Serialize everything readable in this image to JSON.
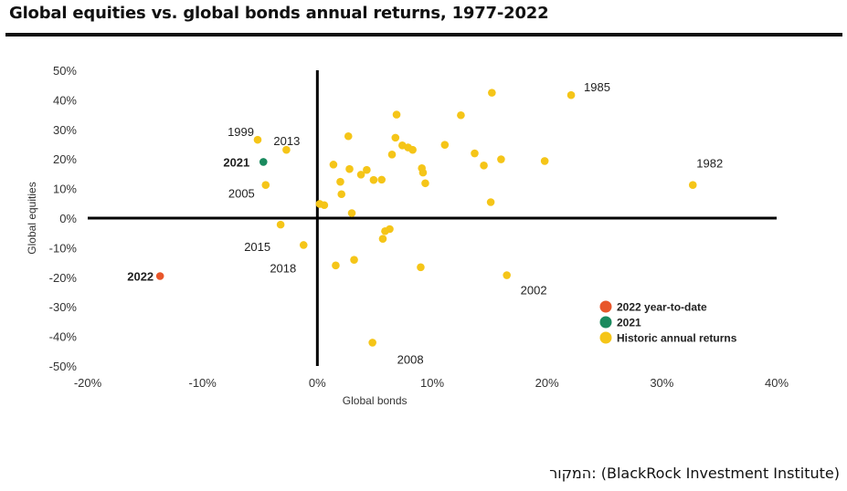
{
  "chart_data": {
    "type": "scatter",
    "title": "Global equities vs. global bonds annual returns, 1977-2022",
    "xlabel": "Global bonds",
    "ylabel": "Global equities",
    "xlim": [
      -20,
      40
    ],
    "ylim": [
      -50,
      50
    ],
    "x_ticks": [
      "-20%",
      "-10%",
      "0%",
      "10%",
      "20%",
      "30%",
      "40%"
    ],
    "y_ticks": [
      "50%",
      "40%",
      "30%",
      "20%",
      "10%",
      "0%",
      "-10%",
      "-20%",
      "-30%",
      "-40%",
      "-50%"
    ],
    "x_tick_values": [
      -20,
      -10,
      0,
      10,
      20,
      30,
      40
    ],
    "y_tick_values": [
      50,
      40,
      30,
      20,
      10,
      0,
      -10,
      -20,
      -30,
      -40,
      -50
    ],
    "grid": false,
    "legend_position": "bottom-right",
    "series": [
      {
        "name": "2022 year-to-date",
        "color": "#e8562a",
        "points": [
          {
            "x": -13.7,
            "y": -19.6,
            "label": "2022",
            "bold": true
          }
        ]
      },
      {
        "name": "2021",
        "color": "#1a8a5e",
        "points": [
          {
            "x": -4.7,
            "y": 19.0,
            "label": "2021",
            "bold": true
          }
        ]
      },
      {
        "name": "Historic annual returns",
        "color": "#f5c518",
        "points": [
          {
            "x": 22.1,
            "y": 41.6,
            "label": "1985"
          },
          {
            "x": 32.7,
            "y": 11.2,
            "label": "1982"
          },
          {
            "x": -5.2,
            "y": 26.5,
            "label": "1999"
          },
          {
            "x": -2.7,
            "y": 23.1,
            "label": "2013"
          },
          {
            "x": -4.5,
            "y": 11.2,
            "label": "2005"
          },
          {
            "x": -3.2,
            "y": -2.2,
            "label": "2015"
          },
          {
            "x": -1.2,
            "y": -9.1,
            "label": "2018"
          },
          {
            "x": 16.5,
            "y": -19.3,
            "label": "2002"
          },
          {
            "x": 4.8,
            "y": -42.1,
            "label": "2008"
          },
          {
            "x": 15.2,
            "y": 42.4
          },
          {
            "x": 6.9,
            "y": 35.0
          },
          {
            "x": 12.5,
            "y": 34.8
          },
          {
            "x": 2.7,
            "y": 27.7
          },
          {
            "x": 6.8,
            "y": 27.2
          },
          {
            "x": 7.4,
            "y": 24.6
          },
          {
            "x": 7.9,
            "y": 23.9
          },
          {
            "x": 8.3,
            "y": 23.1
          },
          {
            "x": 11.1,
            "y": 24.8
          },
          {
            "x": 13.7,
            "y": 21.9
          },
          {
            "x": 6.5,
            "y": 21.5
          },
          {
            "x": 16.0,
            "y": 19.9
          },
          {
            "x": 19.8,
            "y": 19.3
          },
          {
            "x": 14.5,
            "y": 17.8
          },
          {
            "x": 1.4,
            "y": 18.1
          },
          {
            "x": 2.8,
            "y": 16.6
          },
          {
            "x": 9.1,
            "y": 16.9
          },
          {
            "x": 4.3,
            "y": 16.3
          },
          {
            "x": 3.8,
            "y": 14.7
          },
          {
            "x": 9.2,
            "y": 15.4
          },
          {
            "x": 4.9,
            "y": 12.9
          },
          {
            "x": 5.6,
            "y": 13.0
          },
          {
            "x": 2.0,
            "y": 12.3
          },
          {
            "x": 9.4,
            "y": 11.8
          },
          {
            "x": 2.1,
            "y": 8.1
          },
          {
            "x": 15.1,
            "y": 5.4
          },
          {
            "x": 0.2,
            "y": 4.8
          },
          {
            "x": 0.6,
            "y": 4.4
          },
          {
            "x": 3.0,
            "y": 1.7
          },
          {
            "x": 6.3,
            "y": -3.7
          },
          {
            "x": 5.9,
            "y": -4.4
          },
          {
            "x": 5.7,
            "y": -7.0
          },
          {
            "x": 1.6,
            "y": -16.0
          },
          {
            "x": 3.2,
            "y": -14.1
          },
          {
            "x": 9.0,
            "y": -16.6
          }
        ]
      }
    ]
  },
  "source": "המקור: (BlackRock Investment Institute)"
}
